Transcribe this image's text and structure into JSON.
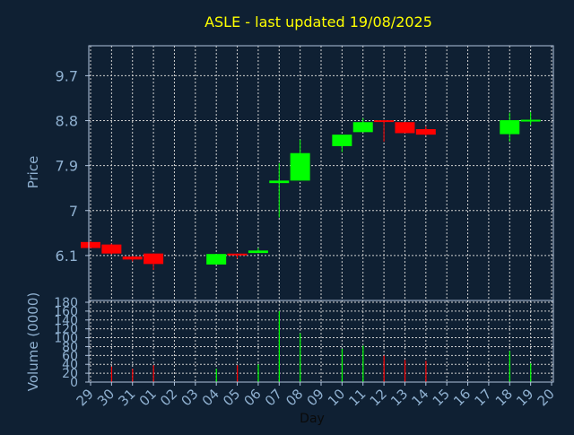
{
  "chart_data": {
    "title": "ASLE - last updated 19/08/2025",
    "xlabel": "Day",
    "colors": {
      "background": "#0f2033",
      "title": "#ffff00",
      "axis_text": "#8fb0d0",
      "frame": "#b0c4de",
      "grid": "#d0d0d0",
      "up": "#00ff00",
      "down": "#ff0000"
    },
    "price_panel": {
      "type": "candlestick",
      "ylabel": "Price",
      "yticks": [
        "9.7",
        "8.8",
        "7.9",
        "7",
        "6.1"
      ],
      "ytick_values": [
        9.7,
        8.8,
        7.9,
        7.0,
        6.1
      ],
      "ylim": [
        5.2,
        10.3
      ],
      "grid": true
    },
    "volume_panel": {
      "type": "bar",
      "ylabel": "Volume (0000)",
      "yticks": [
        "180",
        "160",
        "140",
        "120",
        "100",
        "80",
        "60",
        "40",
        "20",
        "0"
      ],
      "ytick_values": [
        180,
        160,
        140,
        120,
        100,
        80,
        60,
        40,
        20,
        0
      ],
      "ylim": [
        0,
        180
      ],
      "grid": true
    },
    "x_ticks": [
      "29",
      "30",
      "31",
      "01",
      "02",
      "03",
      "04",
      "05",
      "06",
      "07",
      "08",
      "09",
      "10",
      "11",
      "12",
      "13",
      "14",
      "15",
      "16",
      "17",
      "18",
      "19",
      "20"
    ],
    "x_tick_values": [
      0,
      1,
      2,
      3,
      4,
      5,
      6,
      7,
      8,
      9,
      10,
      11,
      12,
      13,
      14,
      15,
      16,
      17,
      18,
      19,
      20,
      21,
      22
    ],
    "xlim": [
      0,
      22
    ],
    "candles": [
      {
        "x": 0,
        "open": 6.37,
        "close": 6.25,
        "high": 6.38,
        "low": 6.25,
        "volume": 0
      },
      {
        "x": 1,
        "open": 6.32,
        "close": 6.14,
        "high": 6.34,
        "low": 6.12,
        "volume": 35
      },
      {
        "x": 2,
        "open": 6.08,
        "close": 6.02,
        "high": 6.09,
        "low": 5.98,
        "volume": 30
      },
      {
        "x": 3,
        "open": 6.14,
        "close": 5.93,
        "high": 6.14,
        "low": 5.81,
        "volume": 38
      },
      {
        "x": 6,
        "open": 5.92,
        "close": 6.13,
        "high": 6.13,
        "low": 5.92,
        "volume": 30
      },
      {
        "x": 7,
        "open": 6.12,
        "close": 6.1,
        "high": 6.14,
        "low": 6.04,
        "volume": 38
      },
      {
        "x": 8,
        "open": 6.15,
        "close": 6.2,
        "high": 6.25,
        "low": 6.15,
        "volume": 40
      },
      {
        "x": 9,
        "open": 7.55,
        "close": 7.6,
        "high": 7.95,
        "low": 6.86,
        "volume": 160
      },
      {
        "x": 10,
        "open": 7.6,
        "close": 8.15,
        "high": 8.42,
        "low": 7.6,
        "volume": 110
      },
      {
        "x": 12,
        "open": 8.29,
        "close": 8.52,
        "high": 8.52,
        "low": 8.17,
        "volume": 75
      },
      {
        "x": 13,
        "open": 8.57,
        "close": 8.77,
        "high": 8.85,
        "low": 8.57,
        "volume": 82
      },
      {
        "x": 14,
        "open": 8.79,
        "close": 8.77,
        "high": 8.81,
        "low": 8.38,
        "volume": 60
      },
      {
        "x": 15,
        "open": 8.77,
        "close": 8.55,
        "high": 8.77,
        "low": 8.55,
        "volume": 50
      },
      {
        "x": 16,
        "open": 8.63,
        "close": 8.52,
        "high": 8.69,
        "low": 8.5,
        "volume": 48
      },
      {
        "x": 20,
        "open": 8.53,
        "close": 8.81,
        "high": 8.96,
        "low": 8.38,
        "volume": 70
      },
      {
        "x": 21,
        "open": 8.78,
        "close": 8.8,
        "high": 8.97,
        "low": 8.71,
        "volume": 42
      }
    ]
  }
}
